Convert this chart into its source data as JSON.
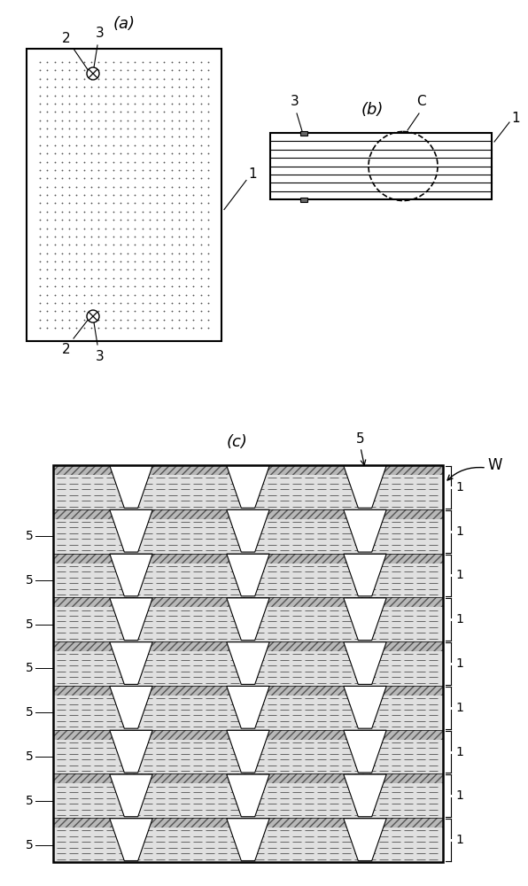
{
  "bg_color": "#ffffff",
  "label_color": "#000000",
  "panel_a_label": "(a)",
  "panel_b_label": "(b)",
  "panel_c_label": "(c)",
  "fig_width": 5.96,
  "fig_height": 10.0,
  "num_layers_c": 9
}
